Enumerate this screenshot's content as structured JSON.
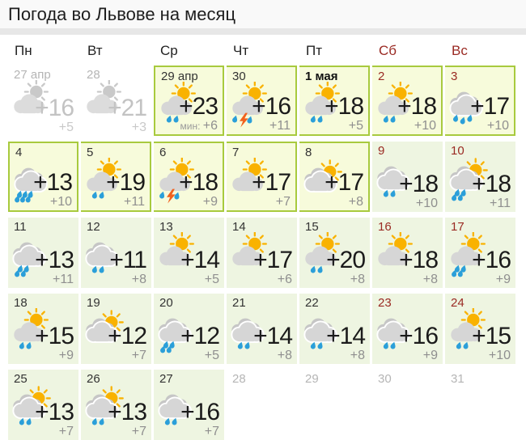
{
  "page": {
    "title": "Погода во Львове на месяц"
  },
  "colors": {
    "accent_border": "#a8ca3e",
    "highlight_bg": "#f7fbdb",
    "forecast_bg": "#eef5e1",
    "weekend_red": "#9a2a23",
    "sun": "#f9b200",
    "cloud_front": "#d6d6d6",
    "cloud_back": "#c6c6c6",
    "raindrop": "#2b9fd9",
    "lightning": "#f2611d",
    "icon_gray_sun": "#c9c9c9",
    "icon_gray_cloud": "#dcdcdc",
    "night_temp_gray": "#8f8f8f"
  },
  "calendar": {
    "weekdays": [
      {
        "label": "Пн",
        "weekend": false
      },
      {
        "label": "Вт",
        "weekend": false
      },
      {
        "label": "Ср",
        "weekend": false
      },
      {
        "label": "Чт",
        "weekend": false
      },
      {
        "label": "Пт",
        "weekend": false
      },
      {
        "label": "Сб",
        "weekend": true
      },
      {
        "label": "Вс",
        "weekend": true
      }
    ],
    "days": [
      {
        "date": "27 апр",
        "style": "inactive",
        "icon": {
          "name": "sun-behind-cloud",
          "sun": true,
          "clouds": 1,
          "drops": 0,
          "gray": true
        },
        "day": "+16",
        "night": "+5"
      },
      {
        "date": "28",
        "style": "inactive",
        "icon": {
          "name": "sun-behind-cloud",
          "sun": true,
          "clouds": 1,
          "drops": 0,
          "gray": true
        },
        "day": "+21",
        "night": "+3"
      },
      {
        "date": "29 апр",
        "style": "highlight",
        "night_prefix": "мин: ",
        "icon": {
          "name": "sun-cloud-rain",
          "sun": true,
          "clouds": 1,
          "drops": 2
        },
        "day": "+23",
        "night": "+6"
      },
      {
        "date": "30",
        "style": "highlight",
        "icon": {
          "name": "sun-cloud-thunderstorm",
          "sun": true,
          "clouds": 1,
          "drops": 2,
          "storm": true
        },
        "day": "+16",
        "night": "+11"
      },
      {
        "date": "1 мая",
        "style": "highlight",
        "bold": true,
        "icon": {
          "name": "sun-cloud-rain",
          "sun": true,
          "clouds": 1,
          "drops": 2
        },
        "day": "+18",
        "night": "+5"
      },
      {
        "date": "2",
        "style": "highlight",
        "weekend": true,
        "icon": {
          "name": "sun-cloud-rain",
          "sun": true,
          "clouds": 1,
          "drops": 2
        },
        "day": "+18",
        "night": "+10"
      },
      {
        "date": "3",
        "style": "highlight",
        "weekend": true,
        "icon": {
          "name": "cloudy-rain",
          "clouds": 2,
          "drops": 3
        },
        "day": "+17",
        "night": "+10"
      },
      {
        "date": "4",
        "style": "highlight",
        "icon": {
          "name": "cloudy-heavy-rain",
          "clouds": 2,
          "drops": 6
        },
        "day": "+13",
        "night": "+10"
      },
      {
        "date": "5",
        "style": "highlight",
        "icon": {
          "name": "sun-cloud-rain",
          "sun": true,
          "clouds": 1,
          "drops": 2
        },
        "day": "+19",
        "night": "+11"
      },
      {
        "date": "6",
        "style": "highlight",
        "icon": {
          "name": "sun-cloud-thunderstorm",
          "sun": true,
          "clouds": 1,
          "drops": 2,
          "storm": true
        },
        "day": "+18",
        "night": "+9"
      },
      {
        "date": "7",
        "style": "highlight",
        "icon": {
          "name": "sun-behind-cloud",
          "sun": true,
          "clouds": 1,
          "drops": 0
        },
        "day": "+17",
        "night": "+7"
      },
      {
        "date": "8",
        "style": "highlight",
        "icon": {
          "name": "clouds-sun",
          "sun": true,
          "clouds": 2,
          "drops": 0
        },
        "day": "+17",
        "night": "+8"
      },
      {
        "date": "9",
        "style": "normal",
        "weekend": true,
        "icon": {
          "name": "cloudy-rain",
          "clouds": 2,
          "drops": 2
        },
        "day": "+18",
        "night": "+10"
      },
      {
        "date": "10",
        "style": "normal",
        "weekend": true,
        "icon": {
          "name": "clouds-sun-rain",
          "sun": true,
          "clouds": 2,
          "drops": 4
        },
        "day": "+18",
        "night": "+11"
      },
      {
        "date": "11",
        "style": "normal",
        "icon": {
          "name": "cloudy-heavy-rain",
          "clouds": 2,
          "drops": 4
        },
        "day": "+13",
        "night": "+11"
      },
      {
        "date": "12",
        "style": "normal",
        "icon": {
          "name": "cloudy-rain",
          "clouds": 2,
          "drops": 2
        },
        "day": "+11",
        "night": "+8"
      },
      {
        "date": "13",
        "style": "normal",
        "icon": {
          "name": "sun-behind-cloud",
          "sun": true,
          "clouds": 1,
          "drops": 0
        },
        "day": "+14",
        "night": "+5"
      },
      {
        "date": "14",
        "style": "normal",
        "icon": {
          "name": "sun-behind-cloud",
          "sun": true,
          "clouds": 1,
          "drops": 0
        },
        "day": "+17",
        "night": "+6"
      },
      {
        "date": "15",
        "style": "normal",
        "icon": {
          "name": "sun-cloud-rain",
          "sun": true,
          "clouds": 1,
          "drops": 2
        },
        "day": "+20",
        "night": "+8"
      },
      {
        "date": "16",
        "style": "normal",
        "weekend": true,
        "icon": {
          "name": "sun-behind-cloud",
          "sun": true,
          "clouds": 1,
          "drops": 0
        },
        "day": "+18",
        "night": "+8"
      },
      {
        "date": "17",
        "style": "normal",
        "weekend": true,
        "icon": {
          "name": "sun-cloud-rain",
          "sun": true,
          "clouds": 1,
          "drops": 4
        },
        "day": "+16",
        "night": "+9"
      },
      {
        "date": "18",
        "style": "normal",
        "icon": {
          "name": "sun-cloud-rain",
          "sun": true,
          "clouds": 1,
          "drops": 2
        },
        "day": "+15",
        "night": "+9"
      },
      {
        "date": "19",
        "style": "normal",
        "icon": {
          "name": "clouds-sun",
          "sun": true,
          "clouds": 2,
          "drops": 0
        },
        "day": "+12",
        "night": "+7"
      },
      {
        "date": "20",
        "style": "normal",
        "icon": {
          "name": "cloudy-heavy-rain",
          "clouds": 2,
          "drops": 4
        },
        "day": "+12",
        "night": "+5"
      },
      {
        "date": "21",
        "style": "normal",
        "icon": {
          "name": "cloudy-rain",
          "clouds": 2,
          "drops": 2
        },
        "day": "+14",
        "night": "+8"
      },
      {
        "date": "22",
        "style": "normal",
        "icon": {
          "name": "cloudy-rain",
          "clouds": 2,
          "drops": 2
        },
        "day": "+14",
        "night": "+8"
      },
      {
        "date": "23",
        "style": "normal",
        "weekend": true,
        "icon": {
          "name": "cloudy-rain",
          "clouds": 2,
          "drops": 2
        },
        "day": "+16",
        "night": "+9"
      },
      {
        "date": "24",
        "style": "normal",
        "weekend": true,
        "icon": {
          "name": "sun-cloud-rain",
          "sun": true,
          "clouds": 1,
          "drops": 2
        },
        "day": "+15",
        "night": "+10"
      },
      {
        "date": "25",
        "style": "normal",
        "icon": {
          "name": "clouds-sun-rain",
          "sun": true,
          "clouds": 2,
          "drops": 2
        },
        "day": "+13",
        "night": "+7"
      },
      {
        "date": "26",
        "style": "normal",
        "icon": {
          "name": "clouds-sun-rain",
          "sun": true,
          "clouds": 2,
          "drops": 2
        },
        "day": "+13",
        "night": "+7"
      },
      {
        "date": "27",
        "style": "normal",
        "icon": {
          "name": "cloudy-rain",
          "clouds": 2,
          "drops": 2
        },
        "day": "+16",
        "night": "+7"
      },
      {
        "date": "28",
        "style": "empty"
      },
      {
        "date": "29",
        "style": "empty"
      },
      {
        "date": "30",
        "style": "empty"
      },
      {
        "date": "31",
        "style": "empty"
      }
    ]
  }
}
